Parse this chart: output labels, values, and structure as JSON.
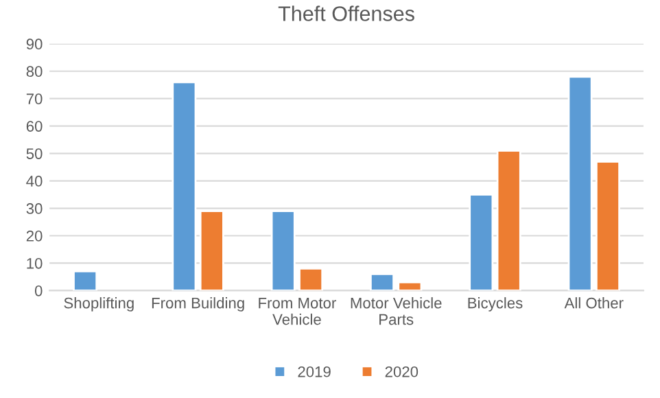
{
  "chart_data": {
    "type": "bar",
    "title": "Theft Offenses",
    "categories": [
      "Shoplifting",
      "From Building",
      "From Motor\nVehicle",
      "Motor Vehicle\nParts",
      "Bicycles",
      "All Other"
    ],
    "series": [
      {
        "name": "2019",
        "color": "#5b9bd5",
        "values": [
          7,
          76,
          29,
          6,
          35,
          78
        ]
      },
      {
        "name": "2020",
        "color": "#ed7d31",
        "values": [
          null,
          29,
          8,
          3,
          51,
          47
        ]
      }
    ],
    "ylim": [
      0,
      90
    ],
    "yticks": [
      0,
      10,
      20,
      30,
      40,
      50,
      60,
      70,
      80,
      90
    ],
    "grid": "y",
    "legend": "bottom"
  }
}
